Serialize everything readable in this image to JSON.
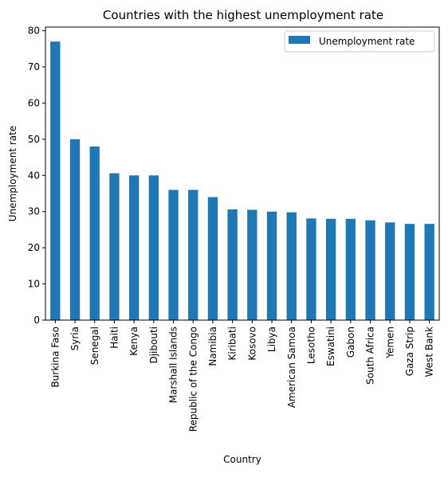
{
  "chart_data": {
    "type": "bar",
    "title": "Countries with the highest unemployment rate",
    "xlabel": "Country",
    "ylabel": "Unemployment rate",
    "ylim": [
      0,
      81
    ],
    "yticks": [
      0,
      10,
      20,
      30,
      40,
      50,
      60,
      70,
      80
    ],
    "grid": false,
    "legend_position": "top-right",
    "categories": [
      "Burkina Faso",
      "Syria",
      "Senegal",
      "Haiti",
      "Kenya",
      "Djibouti",
      "Marshall Islands",
      "Republic of the Congo",
      "Namibia",
      "Kiribati",
      "Kosovo",
      "Libya",
      "American Samoa",
      "Lesotho",
      "Eswatini",
      "Gabon",
      "South Africa",
      "Yemen",
      "Gaza Strip",
      "West Bank"
    ],
    "series": [
      {
        "name": "Unemployment rate",
        "color": "#1f77b4",
        "values": [
          77,
          50,
          48,
          40.6,
          40,
          40,
          36,
          36,
          34,
          30.6,
          30.5,
          30,
          29.8,
          28.1,
          28,
          28,
          27.6,
          27,
          26.6,
          26.6
        ]
      }
    ]
  }
}
